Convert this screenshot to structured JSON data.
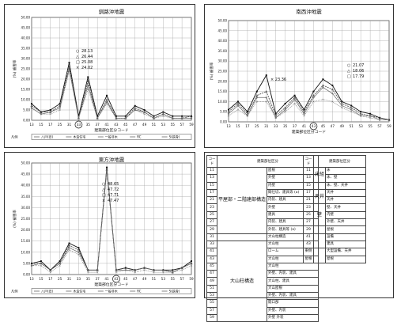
{
  "xcats": [
    "13",
    "15",
    "17",
    "25",
    "31",
    "33",
    "35",
    "37",
    "41",
    "43",
    "45",
    "47",
    "49",
    "51",
    "53",
    "55",
    "57",
    "59"
  ],
  "chart_data": [
    {
      "type": "line",
      "title": "釧路沖地震",
      "ylabel": "(%) 被害率",
      "xlabel": "建築部位区分コード",
      "categories": [
        "13",
        "15",
        "17",
        "25",
        "31",
        "33",
        "35",
        "37",
        "41",
        "43",
        "45",
        "47",
        "49",
        "51",
        "53",
        "55",
        "57",
        "59"
      ],
      "ylim": [
        0,
        50
      ],
      "yticks": [
        "0.00",
        "5.00",
        "10.00",
        "15.00",
        "20.00",
        "25.00",
        "30.00",
        "35.00",
        "40.00",
        "45.00",
        "50.00"
      ],
      "circled_category": "33",
      "callouts": [
        "28.13",
        "26.44",
        "25.08",
        "24.02"
      ],
      "legend_entries": [
        "八戸(旧)",
        "木造住宅",
        "一般非木",
        "RC",
        "S(鉄骨)"
      ],
      "series": [
        {
          "values": [
            8,
            4,
            5,
            8,
            28,
            2,
            21,
            2,
            12,
            2,
            2,
            7,
            5,
            2,
            4,
            2,
            2,
            2
          ]
        },
        {
          "values": [
            7,
            4,
            4,
            7,
            26,
            1,
            19,
            1,
            10,
            1,
            1,
            6,
            4,
            1,
            3,
            1,
            1,
            2
          ]
        },
        {
          "values": [
            6,
            3,
            4,
            6,
            25,
            1,
            17,
            1,
            9,
            1,
            1,
            5,
            4,
            1,
            3,
            1,
            1,
            1
          ]
        },
        {
          "values": [
            6,
            3,
            3,
            5,
            24,
            1,
            15,
            1,
            8,
            1,
            1,
            5,
            3,
            1,
            2,
            1,
            1,
            1
          ]
        }
      ]
    },
    {
      "type": "line",
      "title": "南西沖地震",
      "ylabel": "(%) 被害率",
      "xlabel": "建築部位区分コード",
      "categories": [
        "13",
        "15",
        "17",
        "25",
        "31",
        "33",
        "35",
        "37",
        "41",
        "43",
        "45",
        "47",
        "49",
        "51",
        "53",
        "55",
        "57",
        "59"
      ],
      "ylim": [
        0,
        50
      ],
      "yticks": [
        "0.00",
        "5.00",
        "10.00",
        "15.00",
        "20.00",
        "25.00",
        "30.00",
        "35.00",
        "40.00",
        "45.00",
        "50.00"
      ],
      "circled_category": "43",
      "callouts": [
        "21.07",
        "18.06",
        "17.79"
      ],
      "extra_label": "23.36",
      "series": [
        {
          "values": [
            6,
            10,
            5,
            15,
            23,
            4,
            9,
            13,
            6,
            15,
            21,
            18,
            10,
            8,
            5,
            4,
            2,
            1
          ]
        },
        {
          "values": [
            5,
            9,
            4,
            13,
            15,
            3,
            7,
            12,
            5,
            13,
            18,
            16,
            9,
            7,
            4,
            3,
            2,
            1
          ]
        },
        {
          "values": [
            4,
            8,
            3,
            12,
            12,
            2,
            6,
            11,
            4,
            12,
            17,
            14,
            8,
            6,
            3,
            3,
            1,
            1
          ]
        },
        {
          "values": [
            3,
            6,
            3,
            10,
            10,
            2,
            5,
            9,
            3,
            10,
            11,
            10,
            7,
            5,
            3,
            2,
            1,
            1
          ]
        }
      ]
    },
    {
      "type": "line",
      "title": "東方沖地震",
      "ylabel": "(%) 被害率",
      "xlabel": "建築部位区分コード",
      "categories": [
        "13",
        "15",
        "17",
        "25",
        "31",
        "33",
        "35",
        "37",
        "41",
        "43",
        "45",
        "47",
        "49",
        "51",
        "53",
        "55",
        "57",
        "59"
      ],
      "ylim": [
        0,
        50
      ],
      "yticks": [
        "0.00",
        "5.00",
        "10.00",
        "15.00",
        "20.00",
        "25.00",
        "30.00",
        "35.00",
        "40.00",
        "45.00",
        "50.00"
      ],
      "circled_category": "43",
      "callouts": [
        "48.65",
        "47.72",
        "47.71",
        "47.47"
      ],
      "legend_entries": [
        "八戸(旧)",
        "木造住宅",
        "一般非木",
        "RC",
        "S(鉄骨)"
      ],
      "series": [
        {
          "values": [
            5,
            6,
            2,
            6,
            14,
            12,
            2,
            2,
            48,
            2,
            3,
            2,
            3,
            2,
            2,
            2,
            3,
            6
          ]
        },
        {
          "values": [
            5,
            5,
            2,
            5,
            13,
            11,
            2,
            2,
            47,
            2,
            3,
            2,
            3,
            2,
            2,
            1,
            3,
            5
          ]
        },
        {
          "values": [
            4,
            5,
            2,
            5,
            12,
            10,
            2,
            2,
            47,
            2,
            2,
            2,
            3,
            2,
            2,
            1,
            3,
            5
          ]
        },
        {
          "values": [
            4,
            4,
            1,
            4,
            11,
            9,
            1,
            1,
            47,
            1,
            2,
            1,
            2,
            1,
            1,
            1,
            2,
            4
          ]
        }
      ]
    }
  ],
  "table": {
    "left": {
      "header": [
        "コード",
        "建築部位区分"
      ],
      "groups": [
        {
          "label": "平屋部・二階建部構造",
          "rows": [
            [
              "11",
              "屋根"
            ],
            [
              "13",
              "外壁"
            ],
            [
              "15",
              "内壁"
            ],
            [
              "17",
              "間仕切、建具等 (a)"
            ],
            [
              "21",
              "内装、建具"
            ],
            [
              "23",
              "外壁"
            ],
            [
              "25",
              "建具"
            ],
            [
              "27",
              "内装、建具"
            ],
            [
              "29",
              "外装、建具等 (a)"
            ]
          ]
        },
        {
          "label": "",
          "rows": [
            [
              "31",
              "大山柱構造"
            ]
          ]
        },
        {
          "label": "大山柱構造",
          "rows": [
            [
              "33",
              "大山柱"
            ],
            [
              "41",
              "ローム"
            ],
            [
              "43",
              "大山柱"
            ],
            [
              "45",
              "大山柱"
            ],
            [
              "47",
              "外壁、内装、建具"
            ],
            [
              "49",
              "大山柱、建具"
            ],
            [
              "51",
              "大山屋根"
            ],
            [
              "53",
              "外壁、内装、建具"
            ],
            [
              "55",
              "開口部"
            ],
            [
              "57",
              "外壁、内装"
            ],
            [
              "59",
              "外壁 外装"
            ]
          ]
        }
      ]
    },
    "right": {
      "header": [
        "コード",
        "建築部位区分"
      ],
      "groups": [
        {
          "label": "床組",
          "rows": [
            [
              "11",
              "床"
            ],
            [
              "13",
              "床、壁"
            ]
          ]
        },
        {
          "label": "",
          "rows": [
            [
              "15",
              "床、壁、天井"
            ]
          ]
        },
        {
          "label": "天井",
          "rows": [
            [
              "17",
              "天井"
            ],
            [
              "21",
              "天井"
            ]
          ]
        },
        {
          "label": "壁",
          "rows": [
            [
              "23",
              "壁、天井"
            ],
            [
              "25",
              "内壁"
            ],
            [
              "27",
              "外壁、天井"
            ]
          ]
        },
        {
          "label": "",
          "rows": [
            [
              "29",
              "屋根"
            ]
          ]
        },
        {
          "label": "",
          "rows": [
            [
              "41",
              "設備"
            ],
            [
              "43",
              "建具"
            ]
          ]
        },
        {
          "label": "",
          "rows": [
            [
              "東側",
              "大型設備、天井"
            ],
            [
              "屋根",
              "屋根"
            ]
          ]
        }
      ]
    }
  }
}
